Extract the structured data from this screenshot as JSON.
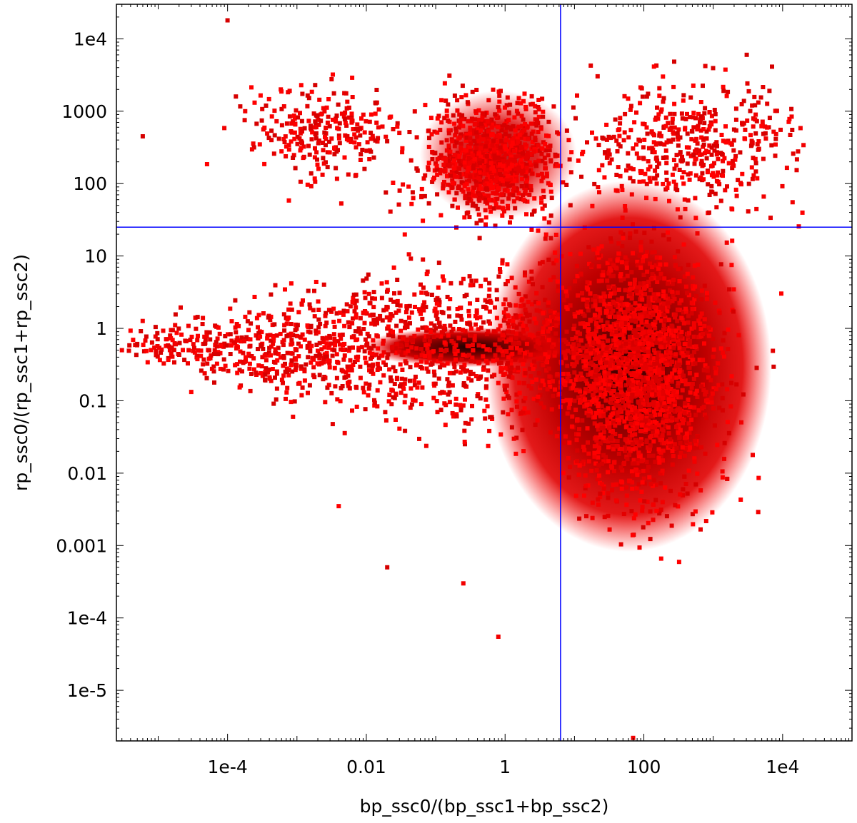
{
  "chart_data": {
    "type": "scatter",
    "title": "",
    "xlabel": "bp_ssc0/(bp_ssc1+bp_ssc2)",
    "ylabel": "rp_ssc0/(rp_ssc1+rp_ssc2)",
    "x_scale": "log",
    "y_scale": "log",
    "xlim": [
      2.5e-06,
      100000
    ],
    "ylim": [
      2e-06,
      30000
    ],
    "x_ticks": [
      {
        "value": 0.0001,
        "label": "1e-4"
      },
      {
        "value": 0.01,
        "label": "0.01"
      },
      {
        "value": 1,
        "label": "1"
      },
      {
        "value": 100,
        "label": "100"
      },
      {
        "value": 10000,
        "label": "1e4"
      }
    ],
    "y_ticks": [
      {
        "value": 1e-05,
        "label": "1e-5"
      },
      {
        "value": 0.0001,
        "label": "1e-4"
      },
      {
        "value": 0.001,
        "label": "0.001"
      },
      {
        "value": 0.01,
        "label": "0.01"
      },
      {
        "value": 0.1,
        "label": "0.1"
      },
      {
        "value": 1,
        "label": "1"
      },
      {
        "value": 10,
        "label": "10"
      },
      {
        "value": 100,
        "label": "100"
      },
      {
        "value": 1000,
        "label": "1000"
      },
      {
        "value": 10000,
        "label": "1e4"
      }
    ],
    "grid": false,
    "point_color": "#ff0000",
    "density_color_dense": "#3a0000",
    "reference_lines": [
      {
        "orientation": "vertical",
        "x": 6.3,
        "color": "#0000ff"
      },
      {
        "orientation": "horizontal",
        "y": 25,
        "color": "#0000ff"
      }
    ],
    "clusters": [
      {
        "name": "upper-left",
        "x_range": [
          0.0001,
          0.03
        ],
        "y_range": [
          30,
          5000
        ],
        "density": "sparse"
      },
      {
        "name": "upper-middle",
        "x_range": [
          0.03,
          6
        ],
        "y_range": [
          30,
          6000
        ],
        "density": "dense"
      },
      {
        "name": "upper-right",
        "x_range": [
          6,
          10000
        ],
        "y_range": [
          30,
          10000
        ],
        "density": "sparse"
      },
      {
        "name": "lower-left-tail",
        "x_range": [
          3e-06,
          6
        ],
        "y_range": [
          0.01,
          10
        ],
        "density": "very-dense",
        "peak": [
          0.8,
          0.6
        ]
      },
      {
        "name": "lower-right",
        "x_range": [
          6,
          30000
        ],
        "y_range": [
          3e-06,
          30
        ],
        "density": "very-dense",
        "peak": [
          60,
          0.3
        ]
      }
    ]
  }
}
